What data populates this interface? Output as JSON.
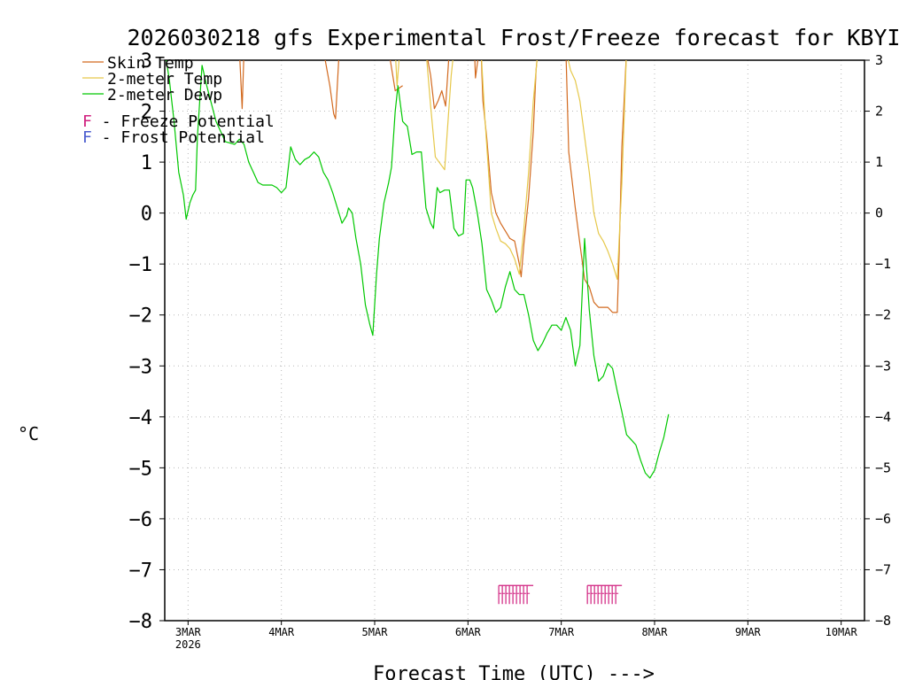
{
  "chart_data": {
    "type": "line",
    "title": "2026030218 gfs Experimental Frost/Freeze forecast for KBYI",
    "xlabel": "Forecast Time (UTC) --->",
    "ylabel": "°C",
    "ylim": [
      -8,
      3
    ],
    "xlim": [
      2.75,
      10.25
    ],
    "x_unit": "days (March 2026)",
    "grid": "dotted",
    "y_ticks": [
      -8,
      -7,
      -6,
      -5,
      -4,
      -3,
      -2,
      -1,
      0,
      1,
      2,
      3
    ],
    "y_tick_labels": [
      "−8",
      "−7",
      "−6",
      "−5",
      "−4",
      "−3",
      "−2",
      "−1",
      "0",
      "1",
      "2",
      "3"
    ],
    "x_ticks": [
      3,
      4,
      5,
      6,
      7,
      8,
      9,
      10
    ],
    "x_tick_labels": [
      "3MAR",
      "4MAR",
      "5MAR",
      "6MAR",
      "7MAR",
      "8MAR",
      "9MAR",
      "10MAR"
    ],
    "x_year_label": "2026",
    "legend": {
      "placement": "top-left",
      "entries": [
        {
          "name": "Skin Temp",
          "color": "#d2691e"
        },
        {
          "name": "2-meter Temp",
          "color": "#e6c84a"
        },
        {
          "name": "2-meter Dewp",
          "color": "#00c800"
        }
      ],
      "markers": [
        {
          "glyph": "F",
          "text": " - Freeze Potential",
          "color": "#d0207f"
        },
        {
          "glyph": "F",
          "text": " - Frost Potential",
          "color": "#4b5ccf"
        }
      ]
    },
    "series": [
      {
        "name": "Skin Temp",
        "color": "#d2691e",
        "segments": [
          [
            [
              3.55,
              3.2
            ],
            [
              3.58,
              2.05
            ],
            [
              3.6,
              3.2
            ]
          ],
          [
            [
              4.45,
              3.2
            ],
            [
              4.52,
              2.5
            ],
            [
              4.56,
              1.95
            ],
            [
              4.58,
              1.85
            ],
            [
              4.62,
              3.2
            ]
          ],
          [
            [
              5.15,
              3.2
            ],
            [
              5.22,
              2.4
            ],
            [
              5.3,
              2.5
            ]
          ],
          [
            [
              5.55,
              3.2
            ],
            [
              5.6,
              2.7
            ],
            [
              5.64,
              2.05
            ],
            [
              5.68,
              2.2
            ],
            [
              5.72,
              2.4
            ],
            [
              5.76,
              2.1
            ],
            [
              5.8,
              3.2
            ]
          ],
          [
            [
              6.07,
              3.2
            ],
            [
              6.08,
              2.65
            ],
            [
              6.12,
              3.2
            ]
          ],
          [
            [
              6.14,
              3.2
            ],
            [
              6.16,
              2.2
            ],
            [
              6.2,
              1.5
            ],
            [
              6.25,
              0.4
            ],
            [
              6.3,
              0.0
            ],
            [
              6.35,
              -0.2
            ],
            [
              6.4,
              -0.35
            ],
            [
              6.45,
              -0.5
            ],
            [
              6.5,
              -0.55
            ],
            [
              6.55,
              -1.0
            ],
            [
              6.57,
              -1.25
            ],
            [
              6.6,
              -0.6
            ],
            [
              6.65,
              0.3
            ],
            [
              6.7,
              1.6
            ],
            [
              6.73,
              2.8
            ],
            [
              6.75,
              3.2
            ]
          ],
          [
            [
              7.05,
              3.2
            ],
            [
              7.08,
              1.2
            ],
            [
              7.15,
              0.1
            ],
            [
              7.2,
              -0.6
            ],
            [
              7.25,
              -1.3
            ],
            [
              7.3,
              -1.45
            ],
            [
              7.35,
              -1.75
            ],
            [
              7.4,
              -1.85
            ],
            [
              7.45,
              -1.85
            ],
            [
              7.5,
              -1.85
            ],
            [
              7.55,
              -1.95
            ],
            [
              7.6,
              -1.95
            ],
            [
              7.62,
              -0.8
            ],
            [
              7.65,
              1.3
            ],
            [
              7.7,
              3.2
            ]
          ]
        ]
      },
      {
        "name": "2-meter Temp",
        "color": "#e6c84a",
        "segments": [
          [
            [
              5.22,
              3.2
            ],
            [
              5.24,
              2.5
            ],
            [
              5.27,
              3.2
            ]
          ],
          [
            [
              5.55,
              3.2
            ],
            [
              5.6,
              2.1
            ],
            [
              5.65,
              1.1
            ],
            [
              5.75,
              0.85
            ],
            [
              5.82,
              2.7
            ],
            [
              5.85,
              3.2
            ]
          ],
          [
            [
              6.14,
              3.2
            ],
            [
              6.18,
              1.9
            ],
            [
              6.25,
              0.0
            ],
            [
              6.3,
              -0.3
            ],
            [
              6.35,
              -0.55
            ],
            [
              6.4,
              -0.6
            ],
            [
              6.45,
              -0.7
            ],
            [
              6.5,
              -0.9
            ],
            [
              6.55,
              -1.2
            ],
            [
              6.6,
              -0.3
            ],
            [
              6.65,
              0.8
            ],
            [
              6.7,
              2.2
            ],
            [
              6.75,
              3.2
            ]
          ],
          [
            [
              7.05,
              3.2
            ],
            [
              7.1,
              2.8
            ],
            [
              7.15,
              2.6
            ],
            [
              7.2,
              2.2
            ],
            [
              7.25,
              1.5
            ],
            [
              7.3,
              0.8
            ],
            [
              7.35,
              0.0
            ],
            [
              7.4,
              -0.4
            ],
            [
              7.45,
              -0.55
            ],
            [
              7.5,
              -0.75
            ],
            [
              7.55,
              -1.0
            ],
            [
              7.6,
              -1.3
            ],
            [
              7.65,
              0.6
            ],
            [
              7.7,
              3.2
            ]
          ]
        ]
      },
      {
        "name": "2-meter Dewp",
        "color": "#00c800",
        "segments": [
          [
            [
              2.75,
              3.2
            ],
            [
              2.8,
              2.6
            ],
            [
              2.85,
              1.8
            ],
            [
              2.9,
              0.8
            ],
            [
              2.95,
              0.35
            ],
            [
              2.98,
              -0.12
            ],
            [
              3.02,
              0.2
            ],
            [
              3.05,
              0.35
            ],
            [
              3.08,
              0.45
            ],
            [
              3.1,
              1.5
            ],
            [
              3.15,
              2.9
            ],
            [
              3.2,
              2.5
            ],
            [
              3.3,
              1.8
            ],
            [
              3.4,
              1.4
            ],
            [
              3.5,
              1.35
            ],
            [
              3.55,
              1.45
            ],
            [
              3.6,
              1.35
            ],
            [
              3.65,
              1.0
            ],
            [
              3.7,
              0.8
            ],
            [
              3.75,
              0.6
            ],
            [
              3.8,
              0.55
            ],
            [
              3.9,
              0.55
            ],
            [
              3.95,
              0.5
            ],
            [
              4.0,
              0.4
            ],
            [
              4.05,
              0.5
            ],
            [
              4.1,
              1.3
            ],
            [
              4.15,
              1.05
            ],
            [
              4.2,
              0.95
            ],
            [
              4.25,
              1.05
            ],
            [
              4.3,
              1.1
            ],
            [
              4.35,
              1.2
            ],
            [
              4.4,
              1.1
            ],
            [
              4.45,
              0.8
            ],
            [
              4.5,
              0.65
            ],
            [
              4.55,
              0.4
            ],
            [
              4.6,
              0.1
            ],
            [
              4.65,
              -0.2
            ],
            [
              4.7,
              -0.05
            ],
            [
              4.72,
              0.1
            ],
            [
              4.76,
              0.0
            ],
            [
              4.8,
              -0.5
            ],
            [
              4.85,
              -1.0
            ],
            [
              4.9,
              -1.8
            ],
            [
              4.95,
              -2.2
            ],
            [
              4.98,
              -2.4
            ],
            [
              5.02,
              -1.2
            ],
            [
              5.05,
              -0.5
            ],
            [
              5.1,
              0.2
            ],
            [
              5.15,
              0.6
            ],
            [
              5.18,
              0.9
            ],
            [
              5.22,
              2.0
            ],
            [
              5.25,
              2.5
            ],
            [
              5.3,
              1.8
            ],
            [
              5.35,
              1.7
            ],
            [
              5.4,
              1.15
            ],
            [
              5.45,
              1.2
            ],
            [
              5.5,
              1.2
            ],
            [
              5.55,
              0.1
            ],
            [
              5.6,
              -0.2
            ],
            [
              5.63,
              -0.3
            ],
            [
              5.67,
              0.5
            ],
            [
              5.7,
              0.4
            ],
            [
              5.75,
              0.45
            ],
            [
              5.8,
              0.45
            ],
            [
              5.85,
              -0.3
            ],
            [
              5.9,
              -0.45
            ],
            [
              5.95,
              -0.4
            ],
            [
              5.98,
              0.65
            ],
            [
              6.02,
              0.65
            ],
            [
              6.05,
              0.5
            ],
            [
              6.1,
              0.0
            ],
            [
              6.15,
              -0.6
            ],
            [
              6.2,
              -1.5
            ],
            [
              6.25,
              -1.7
            ],
            [
              6.3,
              -1.95
            ],
            [
              6.35,
              -1.85
            ],
            [
              6.4,
              -1.45
            ],
            [
              6.45,
              -1.15
            ],
            [
              6.5,
              -1.5
            ],
            [
              6.55,
              -1.6
            ],
            [
              6.6,
              -1.6
            ],
            [
              6.65,
              -2.0
            ],
            [
              6.7,
              -2.5
            ],
            [
              6.75,
              -2.7
            ],
            [
              6.8,
              -2.55
            ],
            [
              6.85,
              -2.35
            ],
            [
              6.9,
              -2.2
            ],
            [
              6.95,
              -2.2
            ],
            [
              7.0,
              -2.3
            ],
            [
              7.05,
              -2.05
            ],
            [
              7.1,
              -2.3
            ],
            [
              7.15,
              -3.0
            ],
            [
              7.2,
              -2.6
            ],
            [
              7.25,
              -0.5
            ],
            [
              7.3,
              -1.9
            ],
            [
              7.35,
              -2.8
            ],
            [
              7.4,
              -3.3
            ],
            [
              7.45,
              -3.2
            ],
            [
              7.5,
              -2.95
            ],
            [
              7.55,
              -3.05
            ],
            [
              7.6,
              -3.5
            ],
            [
              7.65,
              -3.9
            ],
            [
              7.7,
              -4.35
            ],
            [
              7.75,
              -4.45
            ],
            [
              7.8,
              -4.55
            ],
            [
              7.85,
              -4.85
            ],
            [
              7.9,
              -5.1
            ],
            [
              7.95,
              -5.2
            ],
            [
              8.0,
              -5.05
            ],
            [
              8.05,
              -4.7
            ],
            [
              8.1,
              -4.4
            ],
            [
              8.15,
              -3.95
            ]
          ]
        ]
      }
    ],
    "freeze_potential_markers": [
      {
        "x_start": 6.33,
        "x_end": 6.7,
        "y": -7.5,
        "color": "#d0207f"
      },
      {
        "x_start": 7.28,
        "x_end": 7.65,
        "y": -7.5,
        "color": "#d0207f"
      }
    ]
  }
}
